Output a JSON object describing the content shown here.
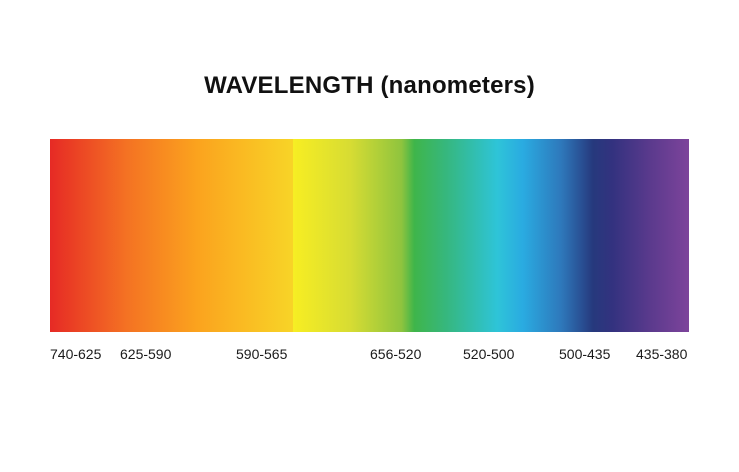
{
  "title": "WAVELENGTH (nanometers)",
  "spectrum": {
    "colors": [
      "#e62a25",
      "#f47223",
      "#fba31e",
      "#f6ee25",
      "#3fb54a",
      "#2ec4d8",
      "#26397d",
      "#7d449b"
    ]
  },
  "labels": [
    "740-625",
    "625-590",
    "590-565",
    "656-520",
    "520-500",
    "500-435",
    "435-380"
  ]
}
